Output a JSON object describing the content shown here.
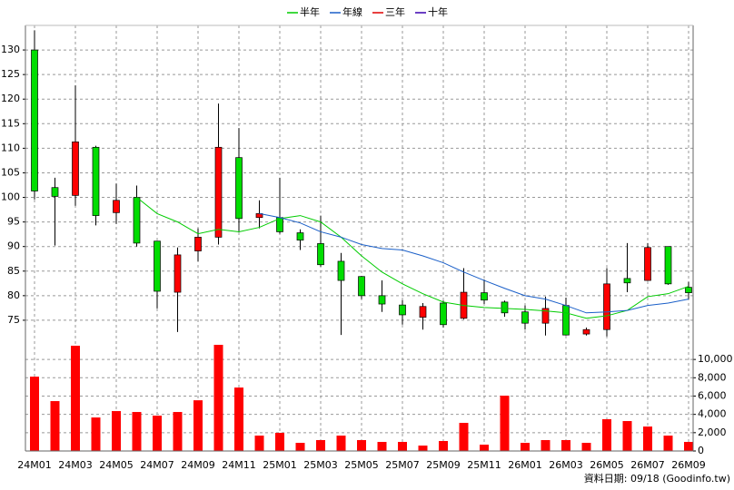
{
  "chart_data": [
    {
      "type": "candlestick",
      "categories": [
        "24M01",
        null,
        "24M03",
        null,
        "24M05",
        null,
        "24M07",
        null,
        "24M09",
        null,
        "24M11",
        null,
        "25M01",
        null,
        "25M03",
        null,
        "25M05",
        null,
        "25M07",
        null,
        "25M09",
        null,
        "25M11",
        null,
        "26M01",
        null,
        "26M03",
        null,
        "26M05",
        null,
        "26M07",
        null,
        "26M09"
      ],
      "open": [
        130,
        102,
        100.4,
        110.2,
        96.9,
        100,
        91.1,
        80.7,
        89.1,
        91.9,
        108.1,
        95.9,
        95.9,
        92.8,
        90.6,
        87,
        83.9,
        80,
        78.1,
        75.6,
        78.5,
        75.4,
        80.6,
        78.7,
        76.7,
        74.4,
        78,
        72.2,
        73.1,
        83.5,
        83.1,
        90,
        81.7
      ],
      "high": [
        134,
        104,
        122.8,
        110.5,
        102.8,
        102.4,
        91.1,
        89.8,
        93.7,
        119.1,
        114.1,
        99.4,
        104,
        93.5,
        96.3,
        88.7,
        84,
        83.1,
        79.1,
        78.5,
        79,
        85.6,
        83.3,
        79,
        78,
        79.8,
        79.6,
        73.5,
        85.6,
        90.7,
        90.7,
        90,
        82.8
      ],
      "low": [
        99.6,
        90.2,
        98.3,
        94.3,
        94.6,
        90,
        77.4,
        72.6,
        87,
        90.4,
        93.1,
        93.7,
        92.6,
        89.3,
        85.9,
        72,
        79.3,
        76.7,
        74.1,
        73.1,
        73.5,
        75.2,
        78.3,
        75.7,
        73.1,
        71.9,
        71.9,
        71.9,
        71.7,
        80.7,
        83,
        82.2,
        79.3
      ],
      "close": [
        101.3,
        100.2,
        111.3,
        96.3,
        99.4,
        90.7,
        80.9,
        88.3,
        91.9,
        110.2,
        95.7,
        96.7,
        93,
        91.3,
        86.3,
        83.1,
        80,
        78.3,
        76.1,
        77.8,
        74.1,
        80.7,
        79.1,
        76.5,
        74.4,
        77.4,
        72,
        73.1,
        82.4,
        82.6,
        89.8,
        82.4,
        80.6
      ],
      "up_color": "#ff0000",
      "down_color": "#00dd00",
      "series": [
        {
          "name": "半年",
          "color": "#00cc00",
          "values": [
            null,
            null,
            null,
            null,
            null,
            100,
            96.7,
            95,
            92.6,
            93.5,
            93,
            93.9,
            95.7,
            96.3,
            95,
            91.9,
            88.1,
            84.8,
            82.4,
            80.4,
            78.7,
            78,
            77.6,
            77.4,
            77.2,
            76.9,
            76.5,
            75.4,
            75.9,
            77,
            79.8,
            80.4,
            81.9
          ]
        },
        {
          "name": "年線",
          "color": "#1a5fc8",
          "values": [
            null,
            null,
            null,
            null,
            null,
            null,
            null,
            null,
            null,
            null,
            null,
            96.7,
            95.9,
            94.8,
            93,
            91.9,
            90.4,
            89.6,
            89.3,
            88.1,
            86.7,
            84.8,
            83.1,
            81.5,
            80,
            79.3,
            78,
            76.5,
            76.7,
            77,
            78,
            78.5,
            79.3
          ]
        },
        {
          "name": "三年",
          "color": "#e00000",
          "values": [
            null,
            null,
            null,
            null,
            null,
            null,
            null,
            null,
            null,
            null,
            null,
            null,
            null,
            null,
            null,
            null,
            null,
            null,
            null,
            null,
            null,
            null,
            null,
            null,
            null,
            null,
            null,
            null,
            null,
            null,
            null,
            null,
            null
          ]
        },
        {
          "name": "十年",
          "color": "#3a00b0",
          "values": [
            null,
            null,
            null,
            null,
            null,
            null,
            null,
            null,
            null,
            null,
            null,
            null,
            null,
            null,
            null,
            null,
            null,
            null,
            null,
            null,
            null,
            null,
            null,
            null,
            null,
            null,
            null,
            null,
            null,
            null,
            null,
            null,
            null
          ]
        }
      ],
      "ylim": [
        70,
        135
      ],
      "yticks": [
        75,
        80,
        85,
        90,
        95,
        100,
        105,
        110,
        115,
        120,
        125,
        130
      ],
      "grid": true
    },
    {
      "type": "bar",
      "color": "#ff0000",
      "values": [
        8120,
        5450,
        11500,
        3660,
        4360,
        4260,
        3860,
        4260,
        5540,
        11600,
        6930,
        1680,
        1980,
        890,
        1190,
        1680,
        1190,
        990,
        990,
        590,
        1090,
        3070,
        690,
        6040,
        890,
        1190,
        1190,
        890,
        3470,
        3270,
        2670,
        1680,
        990
      ],
      "ylim": [
        0,
        11600
      ],
      "yticks": [
        0,
        {
          "value": 2000,
          "label": "2,000"
        },
        {
          "value": 4000,
          "label": "4,000"
        },
        {
          "value": 6000,
          "label": "6,000"
        },
        {
          "value": 8000,
          "label": "8,000"
        },
        {
          "value": 10000,
          "label": "10,000"
        }
      ],
      "grid": true
    }
  ],
  "footer": "資料日期: 09/18 (Goodinfo.tw)"
}
